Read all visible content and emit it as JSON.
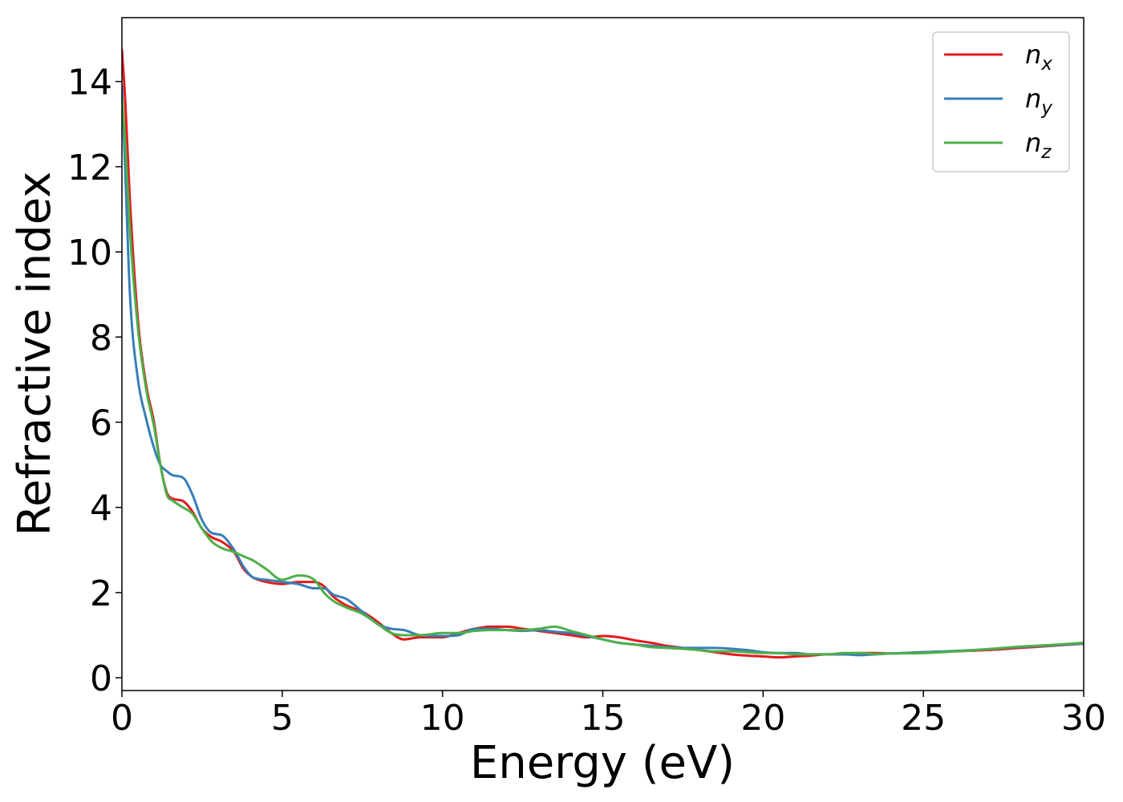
{
  "chart_data": {
    "type": "line",
    "xlabel": "Energy (eV)",
    "ylabel": "Refractive index",
    "xlim": [
      0,
      30
    ],
    "ylim": [
      -0.3,
      15.5
    ],
    "xticks": [
      0,
      5,
      10,
      15,
      20,
      25,
      30
    ],
    "yticks": [
      0,
      2,
      4,
      6,
      8,
      10,
      12,
      14
    ],
    "grid": false,
    "legend_position": "top-right",
    "series": [
      {
        "name": "n",
        "subscript": "x",
        "color": "#e41a1c",
        "x": [
          0,
          0.1,
          0.25,
          0.5,
          0.75,
          1.0,
          1.2,
          1.4,
          1.6,
          1.9,
          2.2,
          2.5,
          2.8,
          3.1,
          3.5,
          3.8,
          4.1,
          4.5,
          5.0,
          5.5,
          6.0,
          6.3,
          6.6,
          7.0,
          7.5,
          8.0,
          8.4,
          8.8,
          9.3,
          10.0,
          10.5,
          11.0,
          11.5,
          12.0,
          12.5,
          13.0,
          13.5,
          14.0,
          14.5,
          15.0,
          15.5,
          16.0,
          16.5,
          17.0,
          17.5,
          18.0,
          18.5,
          19.0,
          19.5,
          20.0,
          20.5,
          21.0,
          21.5,
          22.0,
          22.5,
          23.0,
          23.5,
          24.0,
          25.0,
          26.0,
          27.0,
          28.0,
          29.0,
          30.0
        ],
        "y": [
          14.75,
          13.6,
          11.2,
          8.4,
          6.9,
          6.0,
          5.0,
          4.35,
          4.2,
          4.15,
          3.9,
          3.5,
          3.3,
          3.2,
          2.95,
          2.55,
          2.35,
          2.25,
          2.2,
          2.25,
          2.25,
          2.15,
          1.9,
          1.7,
          1.55,
          1.3,
          1.05,
          0.9,
          0.95,
          0.95,
          1.05,
          1.15,
          1.2,
          1.2,
          1.15,
          1.1,
          1.05,
          1.0,
          0.95,
          0.98,
          0.95,
          0.88,
          0.82,
          0.75,
          0.7,
          0.65,
          0.6,
          0.55,
          0.52,
          0.5,
          0.48,
          0.5,
          0.52,
          0.55,
          0.55,
          0.58,
          0.58,
          0.57,
          0.6,
          0.62,
          0.65,
          0.7,
          0.75,
          0.8
        ]
      },
      {
        "name": "n",
        "subscript": "y",
        "color": "#377eb8",
        "x": [
          0,
          0.1,
          0.25,
          0.5,
          0.75,
          1.0,
          1.2,
          1.4,
          1.6,
          1.9,
          2.2,
          2.5,
          2.8,
          3.1,
          3.5,
          3.8,
          4.1,
          4.5,
          5.0,
          5.5,
          6.0,
          6.3,
          6.6,
          7.0,
          7.5,
          8.0,
          8.4,
          8.8,
          9.3,
          10.0,
          10.5,
          11.0,
          11.5,
          12.0,
          12.5,
          13.0,
          13.5,
          14.0,
          14.5,
          15.0,
          15.5,
          16.0,
          16.5,
          17.0,
          17.5,
          18.0,
          18.5,
          19.0,
          19.5,
          20.0,
          20.5,
          21.0,
          21.5,
          22.0,
          22.5,
          23.0,
          23.5,
          24.0,
          25.0,
          26.0,
          27.0,
          28.0,
          29.0,
          30.0
        ],
        "y": [
          13.9,
          12.0,
          9.0,
          7.0,
          6.1,
          5.4,
          5.0,
          4.85,
          4.75,
          4.7,
          4.3,
          3.7,
          3.4,
          3.35,
          3.0,
          2.6,
          2.35,
          2.3,
          2.25,
          2.2,
          2.1,
          2.1,
          1.95,
          1.85,
          1.55,
          1.25,
          1.15,
          1.12,
          1.0,
          0.98,
          1.0,
          1.15,
          1.15,
          1.12,
          1.1,
          1.12,
          1.08,
          1.05,
          0.98,
          0.9,
          0.82,
          0.78,
          0.75,
          0.72,
          0.7,
          0.7,
          0.7,
          0.68,
          0.65,
          0.6,
          0.58,
          0.58,
          0.55,
          0.55,
          0.55,
          0.53,
          0.55,
          0.57,
          0.6,
          0.63,
          0.67,
          0.72,
          0.76,
          0.8
        ]
      },
      {
        "name": "n",
        "subscript": "z",
        "color": "#4daf4a",
        "x": [
          0,
          0.1,
          0.25,
          0.5,
          0.75,
          1.0,
          1.2,
          1.4,
          1.6,
          1.9,
          2.2,
          2.5,
          2.8,
          3.1,
          3.5,
          3.8,
          4.1,
          4.5,
          5.0,
          5.5,
          6.0,
          6.3,
          6.6,
          7.0,
          7.5,
          8.0,
          8.4,
          8.8,
          9.3,
          10.0,
          10.5,
          11.0,
          11.5,
          12.0,
          12.5,
          13.0,
          13.5,
          14.0,
          14.5,
          15.0,
          15.5,
          16.0,
          16.5,
          17.0,
          17.5,
          18.0,
          18.5,
          19.0,
          19.5,
          20.0,
          20.5,
          21.0,
          21.5,
          22.0,
          22.5,
          23.0,
          23.5,
          24.0,
          25.0,
          26.0,
          27.0,
          28.0,
          29.0,
          30.0
        ],
        "y": [
          13.6,
          12.6,
          10.5,
          8.2,
          6.8,
          5.9,
          5.0,
          4.3,
          4.15,
          4.0,
          3.85,
          3.5,
          3.2,
          3.05,
          2.95,
          2.85,
          2.75,
          2.55,
          2.3,
          2.4,
          2.3,
          2.0,
          1.8,
          1.65,
          1.5,
          1.25,
          1.05,
          1.0,
          1.0,
          1.05,
          1.05,
          1.1,
          1.12,
          1.12,
          1.12,
          1.15,
          1.2,
          1.1,
          1.0,
          0.9,
          0.82,
          0.78,
          0.72,
          0.7,
          0.68,
          0.65,
          0.62,
          0.62,
          0.6,
          0.58,
          0.58,
          0.55,
          0.55,
          0.55,
          0.58,
          0.58,
          0.56,
          0.57,
          0.58,
          0.62,
          0.67,
          0.73,
          0.77,
          0.82
        ]
      }
    ]
  }
}
